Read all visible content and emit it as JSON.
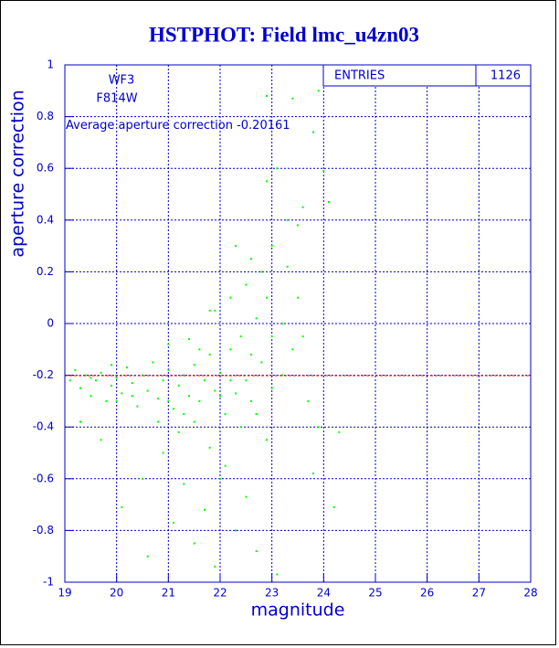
{
  "chart_data": {
    "type": "scatter",
    "title": "HSTPHOT: Field lmc_u4zn03",
    "x_label": "magnitude",
    "y_label": "aperture correction",
    "annotations": [
      "WF3",
      "F814W"
    ],
    "average_label": "Average aperture correction",
    "average": -0.20161,
    "average_color": "#ff0000",
    "stats_label": "ENTRIES",
    "entries": 1126,
    "color": "#00ff00",
    "grid": true,
    "xlim": [
      19,
      28
    ],
    "xticks": [
      19,
      20,
      21,
      22,
      23,
      24,
      25,
      26,
      27,
      28
    ],
    "ylim": [
      -1,
      1
    ],
    "yticks": [
      -1,
      -0.8,
      -0.6,
      -0.4,
      -0.2,
      0,
      0.2,
      0.4,
      0.6,
      0.8,
      1
    ],
    "x": [
      19.1,
      19.2,
      19.3,
      19.4,
      19.5,
      19.6,
      19.7,
      19.8,
      19.9,
      20.0,
      20.1,
      20.2,
      20.3,
      20.4,
      20.5,
      20.6,
      20.7,
      20.8,
      20.9,
      21.0,
      21.1,
      21.2,
      21.3,
      21.4,
      21.5,
      21.6,
      21.7,
      21.8,
      21.9,
      22.0,
      22.1,
      22.2,
      22.3,
      22.4,
      22.5,
      22.6,
      22.7,
      22.8,
      22.9,
      23.0,
      19.3,
      19.7,
      20.1,
      20.5,
      20.6,
      20.9,
      21.1,
      21.3,
      21.5,
      21.7,
      21.9,
      22.1,
      22.3,
      22.5,
      22.7,
      22.9,
      23.1,
      21.2,
      21.8,
      22.4,
      22.0,
      21.0,
      21.4,
      21.9,
      22.2,
      22.5,
      22.8,
      23.0,
      22.9,
      23.1,
      23.3,
      23.5,
      23.6,
      23.9,
      22.9,
      23.4,
      23.8,
      24.0,
      24.1,
      23.0,
      23.2,
      23.4,
      23.6,
      23.7,
      23.9,
      24.3,
      24.2,
      23.8,
      22.6,
      22.3,
      21.8,
      21.6,
      22.7,
      21.3,
      20.8,
      20.3,
      19.9,
      19.5,
      20.0,
      21.0,
      21.5,
      22.0,
      22.2,
      22.6,
      23.2,
      23.5,
      23.3
    ],
    "values": [
      -0.22,
      -0.18,
      -0.25,
      -0.2,
      -0.28,
      -0.22,
      -0.19,
      -0.3,
      -0.24,
      -0.21,
      -0.27,
      -0.17,
      -0.23,
      -0.32,
      -0.2,
      -0.26,
      -0.15,
      -0.29,
      -0.22,
      -0.18,
      -0.33,
      -0.24,
      -0.2,
      -0.28,
      -0.16,
      -0.3,
      -0.22,
      -0.12,
      -0.26,
      -0.19,
      -0.35,
      -0.1,
      -0.27,
      -0.05,
      -0.22,
      -0.3,
      0.02,
      -0.15,
      0.1,
      -0.25,
      -0.38,
      -0.45,
      -0.71,
      -0.6,
      -0.9,
      -0.5,
      -0.77,
      -0.62,
      -0.85,
      -0.72,
      -0.94,
      -0.55,
      -0.8,
      -0.67,
      -0.88,
      -0.45,
      -0.97,
      -0.42,
      -0.48,
      -0.4,
      -0.6,
      -0.08,
      -0.06,
      0.05,
      0.1,
      0.15,
      0.2,
      0.3,
      0.55,
      0.6,
      0.4,
      0.38,
      0.45,
      0.9,
      0.88,
      0.87,
      0.74,
      0.59,
      0.47,
      -0.05,
      0.0,
      -0.1,
      -0.05,
      -0.3,
      -0.4,
      -0.42,
      -0.71,
      -0.58,
      0.25,
      0.3,
      0.05,
      -0.1,
      -0.35,
      -0.35,
      -0.38,
      -0.28,
      -0.16,
      -0.21,
      -0.3,
      -0.3,
      -0.38,
      -0.28,
      -0.22,
      -0.12,
      -0.2,
      0.1,
      0.22
    ]
  }
}
